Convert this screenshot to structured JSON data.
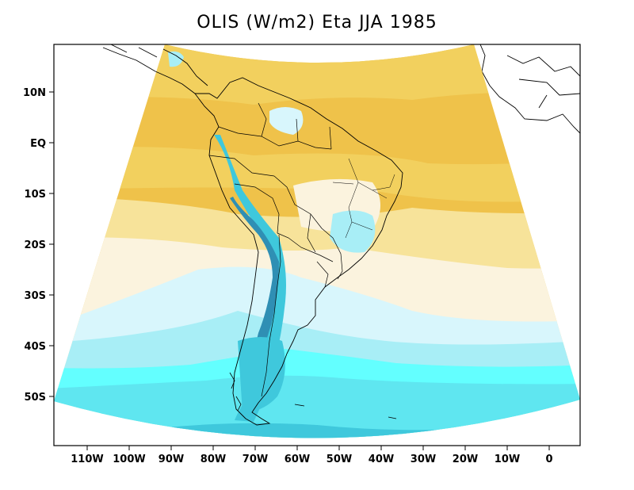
{
  "title": "OLIS (W/m2) Eta JJA 1985",
  "colors": {
    "band_gold": "#EFC24A",
    "band_yellow": "#F2D05E",
    "band_light_yellow": "#F7E39A",
    "band_cream": "#FBF3DE",
    "band_pale_cyan": "#D8F6FC",
    "band_light_cyan": "#A8EEF6",
    "band_cyan": "#5FE6F0",
    "band_bright_cyan": "#63FFFF",
    "band_teal": "#3FC8DC",
    "band_steel": "#2F8FB4",
    "land_outline": "#000000"
  },
  "axes": {
    "y_ticks": [
      "10N",
      "EQ",
      "10S",
      "20S",
      "30S",
      "40S",
      "50S"
    ],
    "x_ticks": [
      "110W",
      "100W",
      "90W",
      "80W",
      "70W",
      "60W",
      "50W",
      "40W",
      "30W",
      "20W",
      "10W",
      "0"
    ]
  }
}
